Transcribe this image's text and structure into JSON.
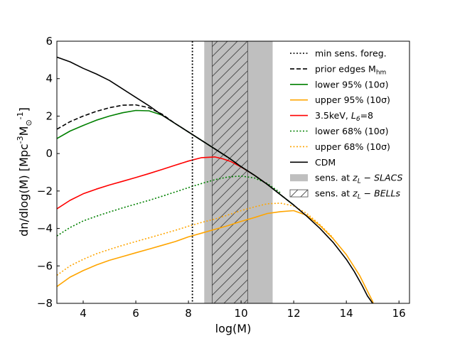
{
  "chart_data": {
    "type": "line",
    "title": "",
    "xlabel": "log(M)",
    "ylabel_main": "dn/dlog(M) [Mpc",
    "ylabel_exp": "-3",
    "ylabel_m": "M",
    "ylabel_sub": "⊙",
    "ylabel_exp2": "-1",
    "ylabel_close": "]",
    "xlim": [
      3,
      16.4
    ],
    "ylim": [
      -8,
      6
    ],
    "xticks": [
      4,
      6,
      8,
      10,
      12,
      14,
      16
    ],
    "yticks": [
      -8,
      -6,
      -4,
      -2,
      0,
      2,
      4,
      6
    ],
    "vline": {
      "x": 8.15,
      "style": "dotted",
      "color": "#000000"
    },
    "bands": [
      {
        "name": "SLACS",
        "x0": 8.6,
        "x1": 11.2,
        "color": "#bfbfbf"
      },
      {
        "name": "BELLs",
        "x0": 8.9,
        "x1": 10.25,
        "color": "#bfbfbf",
        "hatch": true
      }
    ],
    "series": [
      {
        "key": "cdm",
        "name": "CDM",
        "color": "#000000",
        "style": "solid",
        "x": [
          3,
          3.5,
          4,
          4.5,
          5,
          5.5,
          6,
          6.5,
          7,
          7.5,
          8,
          8.5,
          9,
          9.5,
          10,
          10.5,
          11,
          11.5,
          12,
          12.5,
          13,
          13.5,
          14,
          14.3,
          14.6,
          14.8,
          15.0,
          15.05
        ],
        "y": [
          5.15,
          4.9,
          4.55,
          4.25,
          3.9,
          3.45,
          3.0,
          2.55,
          2.05,
          1.6,
          1.15,
          0.7,
          0.25,
          -0.2,
          -0.7,
          -1.15,
          -1.65,
          -2.2,
          -2.75,
          -3.35,
          -4.0,
          -4.75,
          -5.65,
          -6.3,
          -7.05,
          -7.6,
          -8.0,
          -8.1
        ]
      },
      {
        "key": "prior",
        "name": "prior edges M_hm",
        "color": "#000000",
        "style": "dashed",
        "x": [
          3,
          3.5,
          4,
          4.5,
          5,
          5.5,
          6,
          6.5,
          7,
          7.5,
          8,
          8.5,
          9,
          9.5,
          10,
          10.5,
          11,
          11.5,
          12
        ],
        "y": [
          1.3,
          1.7,
          2.0,
          2.25,
          2.45,
          2.58,
          2.6,
          2.45,
          2.1,
          1.6,
          1.15,
          0.7,
          0.25,
          -0.2,
          -0.7,
          -1.15,
          -1.65,
          -2.2,
          -2.75
        ]
      },
      {
        "key": "lower95",
        "name": "lower 95% (10σ)",
        "color": "#008000",
        "style": "solid",
        "x": [
          3,
          3.5,
          4,
          4.5,
          5,
          5.5,
          6,
          6.5,
          7,
          7.5,
          8,
          8.5,
          9,
          9.5,
          10,
          10.5,
          11,
          11.5,
          12
        ],
        "y": [
          0.8,
          1.2,
          1.5,
          1.78,
          2.0,
          2.18,
          2.3,
          2.28,
          2.05,
          1.6,
          1.15,
          0.7,
          0.25,
          -0.2,
          -0.7,
          -1.15,
          -1.65,
          -2.2,
          -2.75
        ]
      },
      {
        "key": "upper95",
        "name": "upper 95% (10σ)",
        "color": "#ffa500",
        "style": "solid",
        "x": [
          3,
          3.5,
          4,
          4.5,
          5,
          5.5,
          6,
          6.5,
          7,
          7.5,
          8,
          8.5,
          9,
          9.5,
          10,
          10.5,
          11,
          11.5,
          12,
          12.5,
          13,
          13.5,
          14,
          14.5,
          15,
          15.05
        ],
        "y": [
          -7.1,
          -6.6,
          -6.25,
          -5.95,
          -5.7,
          -5.5,
          -5.3,
          -5.1,
          -4.9,
          -4.7,
          -4.45,
          -4.25,
          -4.05,
          -3.85,
          -3.62,
          -3.42,
          -3.2,
          -3.1,
          -3.05,
          -3.3,
          -3.85,
          -4.55,
          -5.4,
          -6.5,
          -7.9,
          -8.1
        ]
      },
      {
        "key": "kev",
        "name": "3.5keV, L6=8",
        "color": "#ff0000",
        "style": "solid",
        "x": [
          3,
          3.5,
          4,
          4.5,
          5,
          5.5,
          6,
          6.5,
          7,
          7.5,
          8,
          8.5,
          9,
          9.3,
          9.6,
          10,
          10.5,
          11
        ],
        "y": [
          -2.95,
          -2.5,
          -2.15,
          -1.9,
          -1.68,
          -1.48,
          -1.28,
          -1.07,
          -0.85,
          -0.62,
          -0.4,
          -0.22,
          -0.18,
          -0.28,
          -0.42,
          -0.72,
          -1.15,
          -1.65
        ]
      },
      {
        "key": "lower68",
        "name": "lower 68% (10σ)",
        "color": "#008000",
        "style": "dotted",
        "x": [
          3,
          3.5,
          4,
          4.5,
          5,
          5.5,
          6,
          6.5,
          7,
          7.5,
          8,
          8.5,
          9,
          9.5,
          10,
          10.5,
          11,
          11.5
        ],
        "y": [
          -4.4,
          -3.95,
          -3.6,
          -3.35,
          -3.12,
          -2.9,
          -2.7,
          -2.5,
          -2.28,
          -2.05,
          -1.82,
          -1.6,
          -1.4,
          -1.25,
          -1.2,
          -1.3,
          -1.6,
          -2.1
        ]
      },
      {
        "key": "upper68",
        "name": "upper 68% (10σ)",
        "color": "#ffa500",
        "style": "dotted",
        "x": [
          3,
          3.5,
          4,
          4.5,
          5,
          5.5,
          6,
          6.5,
          7,
          7.5,
          8,
          8.5,
          9,
          9.5,
          10,
          10.5,
          11,
          11.5,
          12,
          12.5,
          13,
          13.5
        ],
        "y": [
          -6.5,
          -6.0,
          -5.65,
          -5.35,
          -5.12,
          -4.9,
          -4.7,
          -4.5,
          -4.3,
          -4.1,
          -3.88,
          -3.68,
          -3.5,
          -3.28,
          -3.05,
          -2.85,
          -2.68,
          -2.65,
          -2.8,
          -3.2,
          -3.8,
          -4.5
        ]
      }
    ],
    "legend": {
      "placement": "top-right",
      "entries": [
        {
          "kind": "line",
          "color": "#000000",
          "style": "dotted",
          "label": "min sens. foreg."
        },
        {
          "kind": "line",
          "color": "#000000",
          "style": "dashed",
          "label": "prior edges M",
          "sub": "hm"
        },
        {
          "kind": "line",
          "color": "#008000",
          "style": "solid",
          "label": "lower 95% (10σ)"
        },
        {
          "kind": "line",
          "color": "#ffa500",
          "style": "solid",
          "label": "upper 95% (10σ)"
        },
        {
          "kind": "line",
          "color": "#ff0000",
          "style": "solid",
          "label": "3.5keV, ",
          "italic": "L",
          "sub": "6",
          "tail": "=8"
        },
        {
          "kind": "line",
          "color": "#008000",
          "style": "dotted",
          "label": "lower 68% (10σ)"
        },
        {
          "kind": "line",
          "color": "#ffa500",
          "style": "dotted",
          "label": "upper 68% (10σ)"
        },
        {
          "kind": "line",
          "color": "#000000",
          "style": "solid",
          "label": "CDM"
        },
        {
          "kind": "patch",
          "color": "#bfbfbf",
          "hatch": false,
          "label": "sens. at ",
          "italic": "z",
          "sub": "L",
          "tail": " − SLACS"
        },
        {
          "kind": "patch",
          "color": "#ffffff",
          "hatch": true,
          "label": "sens. at ",
          "italic": "z",
          "sub": "L",
          "tail": " − BELLs"
        }
      ]
    }
  }
}
